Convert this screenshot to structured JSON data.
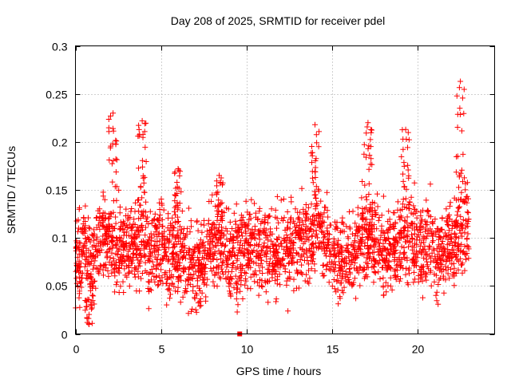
{
  "chart_data": {
    "type": "scatter",
    "title": "Day 208 of 2025, SRMTID for receiver pdel",
    "xlabel": "GPS time / hours",
    "ylabel": "SRMTID / TECUs",
    "xlim": [
      0,
      24.5
    ],
    "ylim": [
      0,
      0.3
    ],
    "xticks": [
      "0",
      "5",
      "10",
      "15",
      "20"
    ],
    "xtick_values": [
      0,
      5,
      10,
      15,
      20
    ],
    "yticks": [
      "0",
      "0.05",
      "0.1",
      "0.15",
      "0.2",
      "0.25",
      "0.3"
    ],
    "ytick_values": [
      0,
      0.05,
      0.1,
      0.15,
      0.2,
      0.25,
      0.3
    ],
    "grid": true,
    "marker": "+",
    "series": [
      {
        "name": "SRMTID",
        "color": "#ff0000",
        "profile_hours": [
          0.0,
          0.5,
          1.0,
          1.5,
          2.0,
          2.5,
          3.0,
          3.5,
          4.0,
          4.5,
          5.0,
          5.5,
          6.0,
          6.5,
          7.0,
          7.5,
          8.0,
          8.5,
          9.0,
          9.5,
          10.0,
          10.5,
          11.0,
          11.5,
          12.0,
          12.5,
          13.0,
          13.5,
          14.0,
          14.5,
          15.0,
          15.5,
          16.0,
          16.5,
          17.0,
          17.5,
          18.0,
          18.5,
          19.0,
          19.5,
          20.0,
          20.5,
          21.0,
          21.5,
          22.0,
          22.5,
          23.0
        ],
        "profile_mean": [
          0.075,
          0.085,
          0.068,
          0.11,
          0.1,
          0.085,
          0.095,
          0.09,
          0.1,
          0.075,
          0.095,
          0.085,
          0.09,
          0.065,
          0.07,
          0.075,
          0.09,
          0.095,
          0.08,
          0.08,
          0.085,
          0.09,
          0.085,
          0.085,
          0.085,
          0.09,
          0.09,
          0.1,
          0.11,
          0.1,
          0.085,
          0.08,
          0.085,
          0.095,
          0.1,
          0.1,
          0.085,
          0.09,
          0.09,
          0.1,
          0.095,
          0.095,
          0.085,
          0.08,
          0.09,
          0.1,
          0.11
        ],
        "peaks": [
          {
            "x": 0.8,
            "y": 0.01
          },
          {
            "x": 2.2,
            "y": 0.23
          },
          {
            "x": 3.9,
            "y": 0.222
          },
          {
            "x": 6.0,
            "y": 0.172
          },
          {
            "x": 8.4,
            "y": 0.165
          },
          {
            "x": 14.0,
            "y": 0.218
          },
          {
            "x": 17.1,
            "y": 0.22
          },
          {
            "x": 19.3,
            "y": 0.213
          },
          {
            "x": 22.5,
            "y": 0.263
          }
        ],
        "outlier": {
          "x": 9.6,
          "y": 0.0
        }
      }
    ]
  }
}
